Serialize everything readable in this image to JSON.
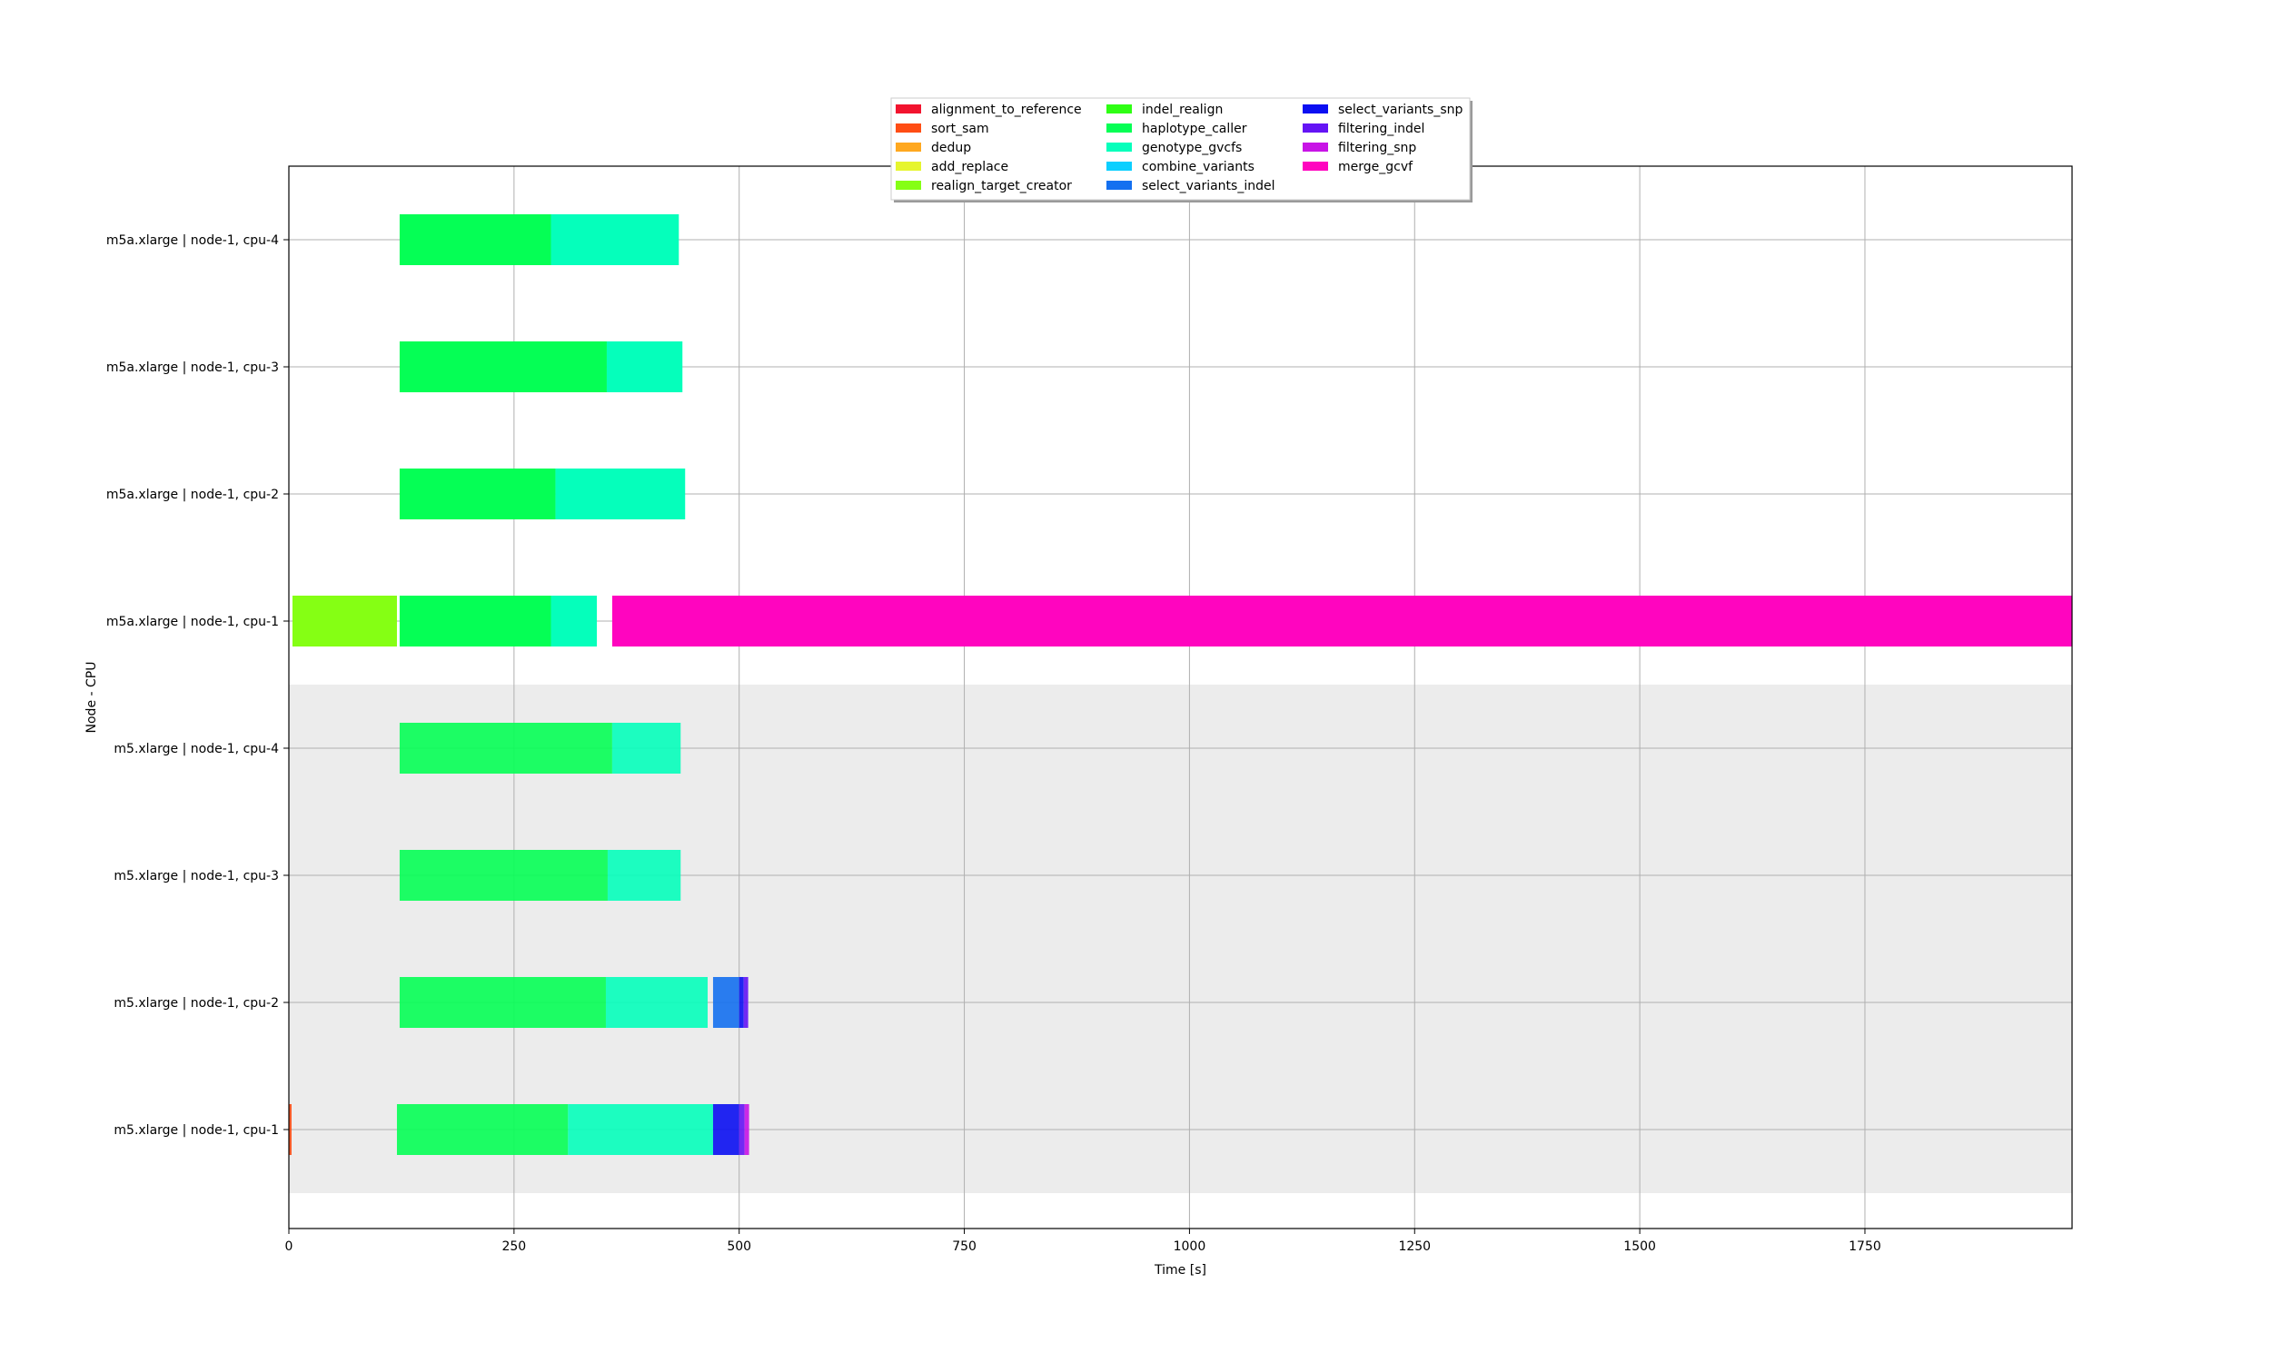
{
  "chart_data": {
    "type": "gantt",
    "title": "",
    "xlabel": "Time [s]",
    "ylabel": "Node - CPU",
    "xlim": [
      0,
      1980
    ],
    "xticks": [
      0,
      250,
      500,
      750,
      1000,
      1250,
      1500,
      1750
    ],
    "grid": true,
    "legend_position": "top-center",
    "legend": [
      {
        "name": "alignment_to_reference",
        "color": "#f2132e"
      },
      {
        "name": "sort_sam",
        "color": "#ff4d14"
      },
      {
        "name": "dedup",
        "color": "#ffa81f"
      },
      {
        "name": "add_replace",
        "color": "#e6f52e"
      },
      {
        "name": "realign_target_creator",
        "color": "#85ff14"
      },
      {
        "name": "indel_realign",
        "color": "#2eff14"
      },
      {
        "name": "haplotype_caller",
        "color": "#05ff55"
      },
      {
        "name": "genotype_gvcfs",
        "color": "#05ffbb"
      },
      {
        "name": "combine_variants",
        "color": "#0ccfff"
      },
      {
        "name": "select_variants_indel",
        "color": "#1470f0"
      },
      {
        "name": "select_variants_snp",
        "color": "#0b0ff2"
      },
      {
        "name": "filtering_indel",
        "color": "#6414f5"
      },
      {
        "name": "filtering_snp",
        "color": "#c814e6"
      },
      {
        "name": "merge_gcvf",
        "color": "#ff05bf"
      }
    ],
    "shaded_rows": [
      "m5.xlarge | node-1, cpu-4",
      "m5.xlarge | node-1, cpu-3",
      "m5.xlarge | node-1, cpu-2",
      "m5.xlarge | node-1, cpu-1"
    ],
    "rows": [
      {
        "label": "m5a.xlarge | node-1, cpu-4",
        "tasks": [
          {
            "task": "haplotype_caller",
            "start": 123,
            "end": 291
          },
          {
            "task": "genotype_gvcfs",
            "start": 291,
            "end": 433
          }
        ]
      },
      {
        "label": "m5a.xlarge | node-1, cpu-3",
        "tasks": [
          {
            "task": "haplotype_caller",
            "start": 123,
            "end": 353
          },
          {
            "task": "genotype_gvcfs",
            "start": 353,
            "end": 437
          }
        ]
      },
      {
        "label": "m5a.xlarge | node-1, cpu-2",
        "tasks": [
          {
            "task": "haplotype_caller",
            "start": 123,
            "end": 296
          },
          {
            "task": "genotype_gvcfs",
            "start": 296,
            "end": 440
          }
        ]
      },
      {
        "label": "m5a.xlarge | node-1, cpu-1",
        "tasks": [
          {
            "task": "realign_target_creator",
            "start": 4,
            "end": 120
          },
          {
            "task": "haplotype_caller",
            "start": 123,
            "end": 291
          },
          {
            "task": "genotype_gvcfs",
            "start": 291,
            "end": 342
          },
          {
            "task": "merge_gcvf",
            "start": 359,
            "end": 1980
          }
        ]
      },
      {
        "label": "m5.xlarge | node-1, cpu-4",
        "tasks": [
          {
            "task": "haplotype_caller",
            "start": 123,
            "end": 359
          },
          {
            "task": "genotype_gvcfs",
            "start": 359,
            "end": 435
          }
        ]
      },
      {
        "label": "m5.xlarge | node-1, cpu-3",
        "tasks": [
          {
            "task": "haplotype_caller",
            "start": 123,
            "end": 354
          },
          {
            "task": "genotype_gvcfs",
            "start": 354,
            "end": 435
          }
        ]
      },
      {
        "label": "m5.xlarge | node-1, cpu-2",
        "tasks": [
          {
            "task": "haplotype_caller",
            "start": 123,
            "end": 352
          },
          {
            "task": "genotype_gvcfs",
            "start": 352,
            "end": 465
          },
          {
            "task": "select_variants_indel",
            "start": 471,
            "end": 500
          },
          {
            "task": "select_variants_snp",
            "start": 500,
            "end": 505
          },
          {
            "task": "filtering_indel",
            "start": 505,
            "end": 510
          }
        ]
      },
      {
        "label": "m5.xlarge | node-1, cpu-1",
        "tasks": [
          {
            "task": "sort_sam",
            "start": 0,
            "end": 3
          },
          {
            "task": "haplotype_caller",
            "start": 120,
            "end": 310
          },
          {
            "task": "genotype_gvcfs",
            "start": 310,
            "end": 471
          },
          {
            "task": "select_variants_snp",
            "start": 471,
            "end": 500
          },
          {
            "task": "filtering_indel",
            "start": 500,
            "end": 506
          },
          {
            "task": "filtering_snp",
            "start": 506,
            "end": 511
          }
        ]
      }
    ]
  }
}
